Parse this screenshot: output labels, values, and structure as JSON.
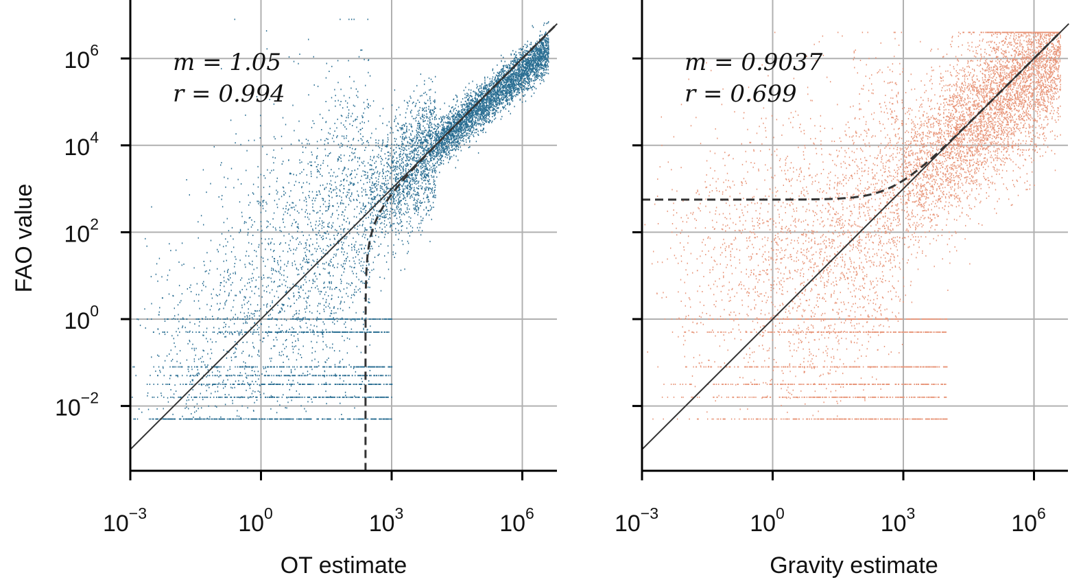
{
  "chart_data": [
    {
      "type": "scatter",
      "xlabel": "OT estimate",
      "ylabel": "FAO value",
      "xscale": "log",
      "yscale": "log",
      "xlim_log10": [
        -3,
        6.8
      ],
      "ylim_log10": [
        -3.5,
        7.3
      ],
      "xticks": [
        {
          "base": "10",
          "exp": "−3"
        },
        {
          "base": "10",
          "exp": "0"
        },
        {
          "base": "10",
          "exp": "3"
        },
        {
          "base": "10",
          "exp": "6"
        }
      ],
      "yticks": [
        {
          "base": "10",
          "exp": "−2"
        },
        {
          "base": "10",
          "exp": "0"
        },
        {
          "base": "10",
          "exp": "2"
        },
        {
          "base": "10",
          "exp": "4"
        },
        {
          "base": "10",
          "exp": "6"
        }
      ],
      "grid": true,
      "point_color": "#2b6f93",
      "annotation": {
        "m": "m = 1.05",
        "r": "r = 0.994"
      },
      "identity_line": true,
      "fit_curve": "vertical asymptote near x = 10^2.4 (dashed)",
      "y_floor_log10": -2.3,
      "y_rows_log10": [
        -2.3,
        -1.8,
        -1.5,
        -1.3,
        -1.1,
        -0.3,
        0
      ],
      "x_range_log10": [
        -3,
        6.6
      ]
    },
    {
      "type": "scatter",
      "xlabel": "Gravity estimate",
      "ylabel": "",
      "xscale": "log",
      "yscale": "log",
      "xlim_log10": [
        -3,
        6.8
      ],
      "ylim_log10": [
        -3.5,
        7.3
      ],
      "xticks": [
        {
          "base": "10",
          "exp": "−3"
        },
        {
          "base": "10",
          "exp": "0"
        },
        {
          "base": "10",
          "exp": "3"
        },
        {
          "base": "10",
          "exp": "6"
        }
      ],
      "yticks_labeled": false,
      "grid": true,
      "point_color": "#e8967a",
      "annotation": {
        "m": "m = 0.9037",
        "r": "r = 0.699"
      },
      "identity_line": true,
      "fit_curve": "horizontal asymptote near y = 10^2.75 (dashed)",
      "y_floor_log10": -2.3,
      "y_rows_log10": [
        -2.3,
        -1.8,
        -1.5,
        -1.1,
        -0.3,
        0
      ],
      "x_range_log10": [
        -3,
        6.6
      ]
    }
  ]
}
